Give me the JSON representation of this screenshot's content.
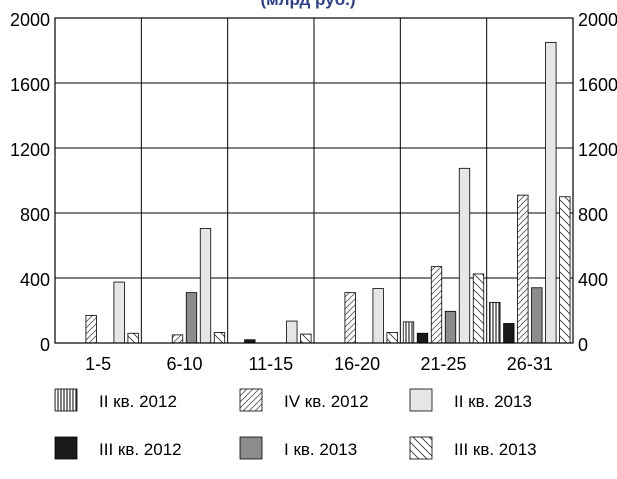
{
  "chart_data": {
    "type": "bar",
    "title": "(млрд руб.)",
    "categories": [
      "1-5",
      "6-10",
      "11-15",
      "16-20",
      "21-25",
      "26-31"
    ],
    "ylim": [
      0,
      2000
    ],
    "yticks": [
      0,
      400,
      800,
      1200,
      1600,
      2000
    ],
    "ytick_labels": [
      "0",
      "400",
      "800",
      "1200",
      "1600",
      "2000"
    ],
    "grid": true,
    "legend_position": "bottom",
    "series": [
      {
        "name": "II кв. 2012",
        "pattern": "vertical",
        "color": "#ffffff",
        "values": [
          0,
          0,
          0,
          0,
          130,
          250
        ]
      },
      {
        "name": "III кв. 2012",
        "pattern": "solid",
        "color": "#1a1a1a",
        "values": [
          0,
          0,
          20,
          0,
          60,
          120
        ]
      },
      {
        "name": "IV кв. 2012",
        "pattern": "diag-up",
        "color": "#ffffff",
        "values": [
          170,
          50,
          0,
          310,
          470,
          910
        ]
      },
      {
        "name": "I кв. 2013",
        "pattern": "solid",
        "color": "#8c8c8c",
        "values": [
          0,
          310,
          0,
          0,
          195,
          340
        ]
      },
      {
        "name": "II кв. 2013",
        "pattern": "solid",
        "color": "#e6e6e6",
        "values": [
          375,
          705,
          135,
          335,
          1075,
          1850
        ]
      },
      {
        "name": "III кв. 2013",
        "pattern": "diag-down",
        "color": "#ffffff",
        "values": [
          60,
          65,
          55,
          65,
          425,
          900
        ]
      }
    ]
  }
}
